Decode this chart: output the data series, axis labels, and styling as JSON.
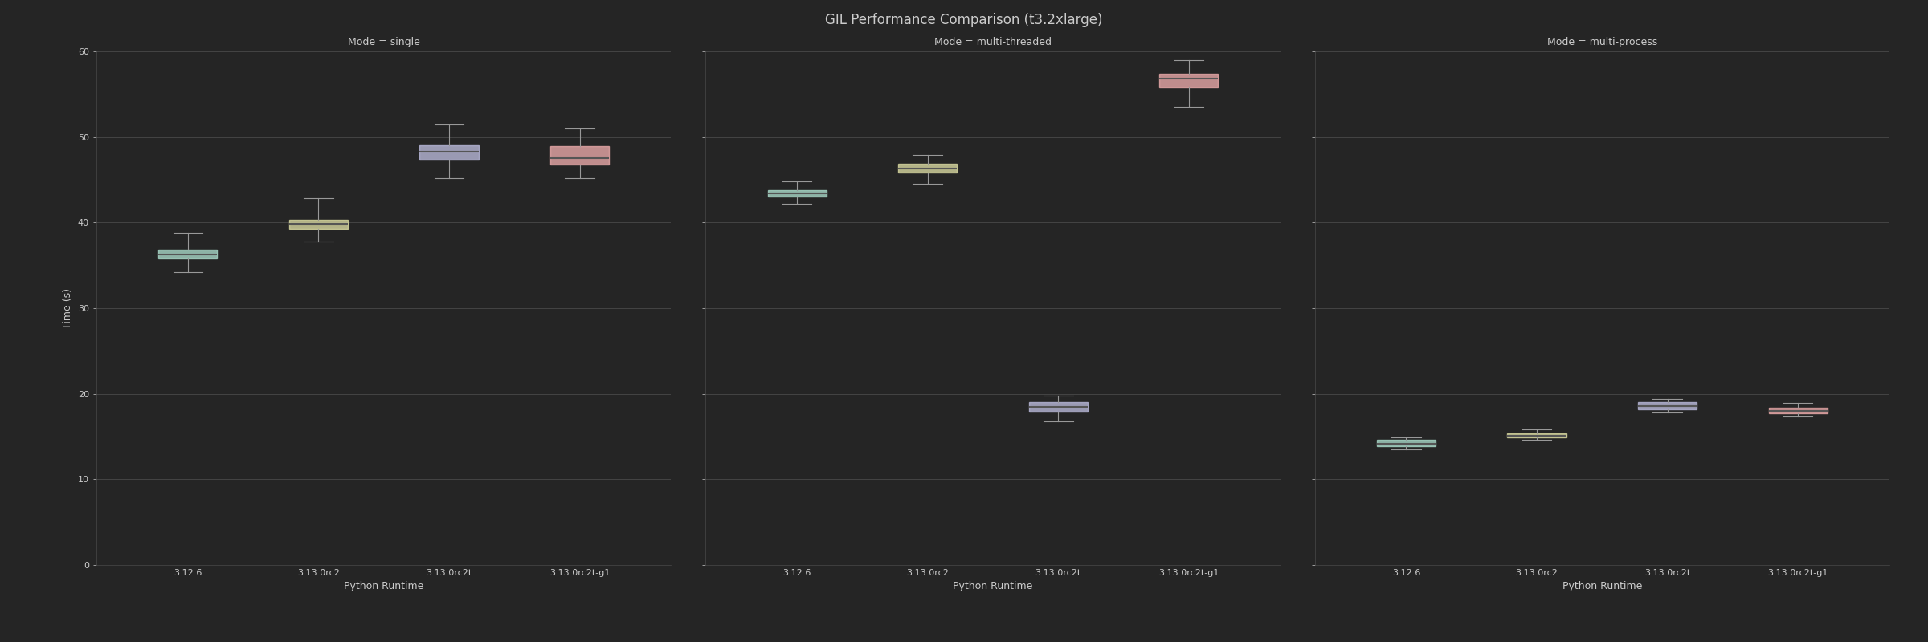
{
  "title": "GIL Performance Comparison (t3.2xlarge)",
  "ylabel": "Time (s)",
  "xlabel": "Python Runtime",
  "background_color": "#252525",
  "axes_bg_color": "#252525",
  "text_color": "#cccccc",
  "grid_color": "#4a4a4a",
  "ylim": [
    0,
    60
  ],
  "yticks": [
    0,
    10,
    20,
    30,
    40,
    50,
    60
  ],
  "categories": [
    "3.12.6",
    "3.13.0rc2",
    "3.13.0rc2t",
    "3.13.0rc2t-g1"
  ],
  "box_colors": [
    "#a8d8c8",
    "#d8d8a0",
    "#b8b8d8",
    "#e8a8a8"
  ],
  "box_width": 0.45,
  "modes": [
    "Mode = single",
    "Mode = multi-threaded",
    "Mode = multi-process"
  ],
  "data": {
    "Mode = single": {
      "3.12.6": {
        "whislo": 34.2,
        "q1": 35.8,
        "med": 36.3,
        "q3": 36.8,
        "whishi": 38.8
      },
      "3.13.0rc2": {
        "whislo": 37.8,
        "q1": 39.3,
        "med": 39.8,
        "q3": 40.3,
        "whishi": 42.8
      },
      "3.13.0rc2t": {
        "whislo": 45.2,
        "q1": 47.3,
        "med": 48.3,
        "q3": 49.0,
        "whishi": 51.5
      },
      "3.13.0rc2t-g1": {
        "whislo": 45.2,
        "q1": 46.8,
        "med": 47.5,
        "q3": 48.9,
        "whishi": 51.0
      }
    },
    "Mode = multi-threaded": {
      "3.12.6": {
        "whislo": 42.2,
        "q1": 43.0,
        "med": 43.4,
        "q3": 43.8,
        "whishi": 44.8
      },
      "3.13.0rc2": {
        "whislo": 44.5,
        "q1": 45.8,
        "med": 46.3,
        "q3": 46.9,
        "whishi": 47.9
      },
      "3.13.0rc2t": {
        "whislo": 16.8,
        "q1": 17.9,
        "med": 18.5,
        "q3": 19.0,
        "whishi": 19.8
      },
      "3.13.0rc2t-g1": {
        "whislo": 53.5,
        "q1": 55.8,
        "med": 56.8,
        "q3": 57.4,
        "whishi": 59.0
      }
    },
    "Mode = multi-process": {
      "3.12.6": {
        "whislo": 13.5,
        "q1": 13.9,
        "med": 14.2,
        "q3": 14.6,
        "whishi": 14.9
      },
      "3.13.0rc2": {
        "whislo": 14.6,
        "q1": 14.9,
        "med": 15.1,
        "q3": 15.4,
        "whishi": 15.8
      },
      "3.13.0rc2t": {
        "whislo": 17.8,
        "q1": 18.2,
        "med": 18.6,
        "q3": 19.0,
        "whishi": 19.4
      },
      "3.13.0rc2t-g1": {
        "whislo": 17.3,
        "q1": 17.7,
        "med": 18.0,
        "q3": 18.4,
        "whishi": 18.9
      }
    }
  },
  "median_color": "#555555",
  "whisker_color": "#999999",
  "cap_color": "#999999",
  "title_fontsize": 12,
  "subplot_title_fontsize": 9,
  "tick_fontsize": 8,
  "label_fontsize": 9
}
